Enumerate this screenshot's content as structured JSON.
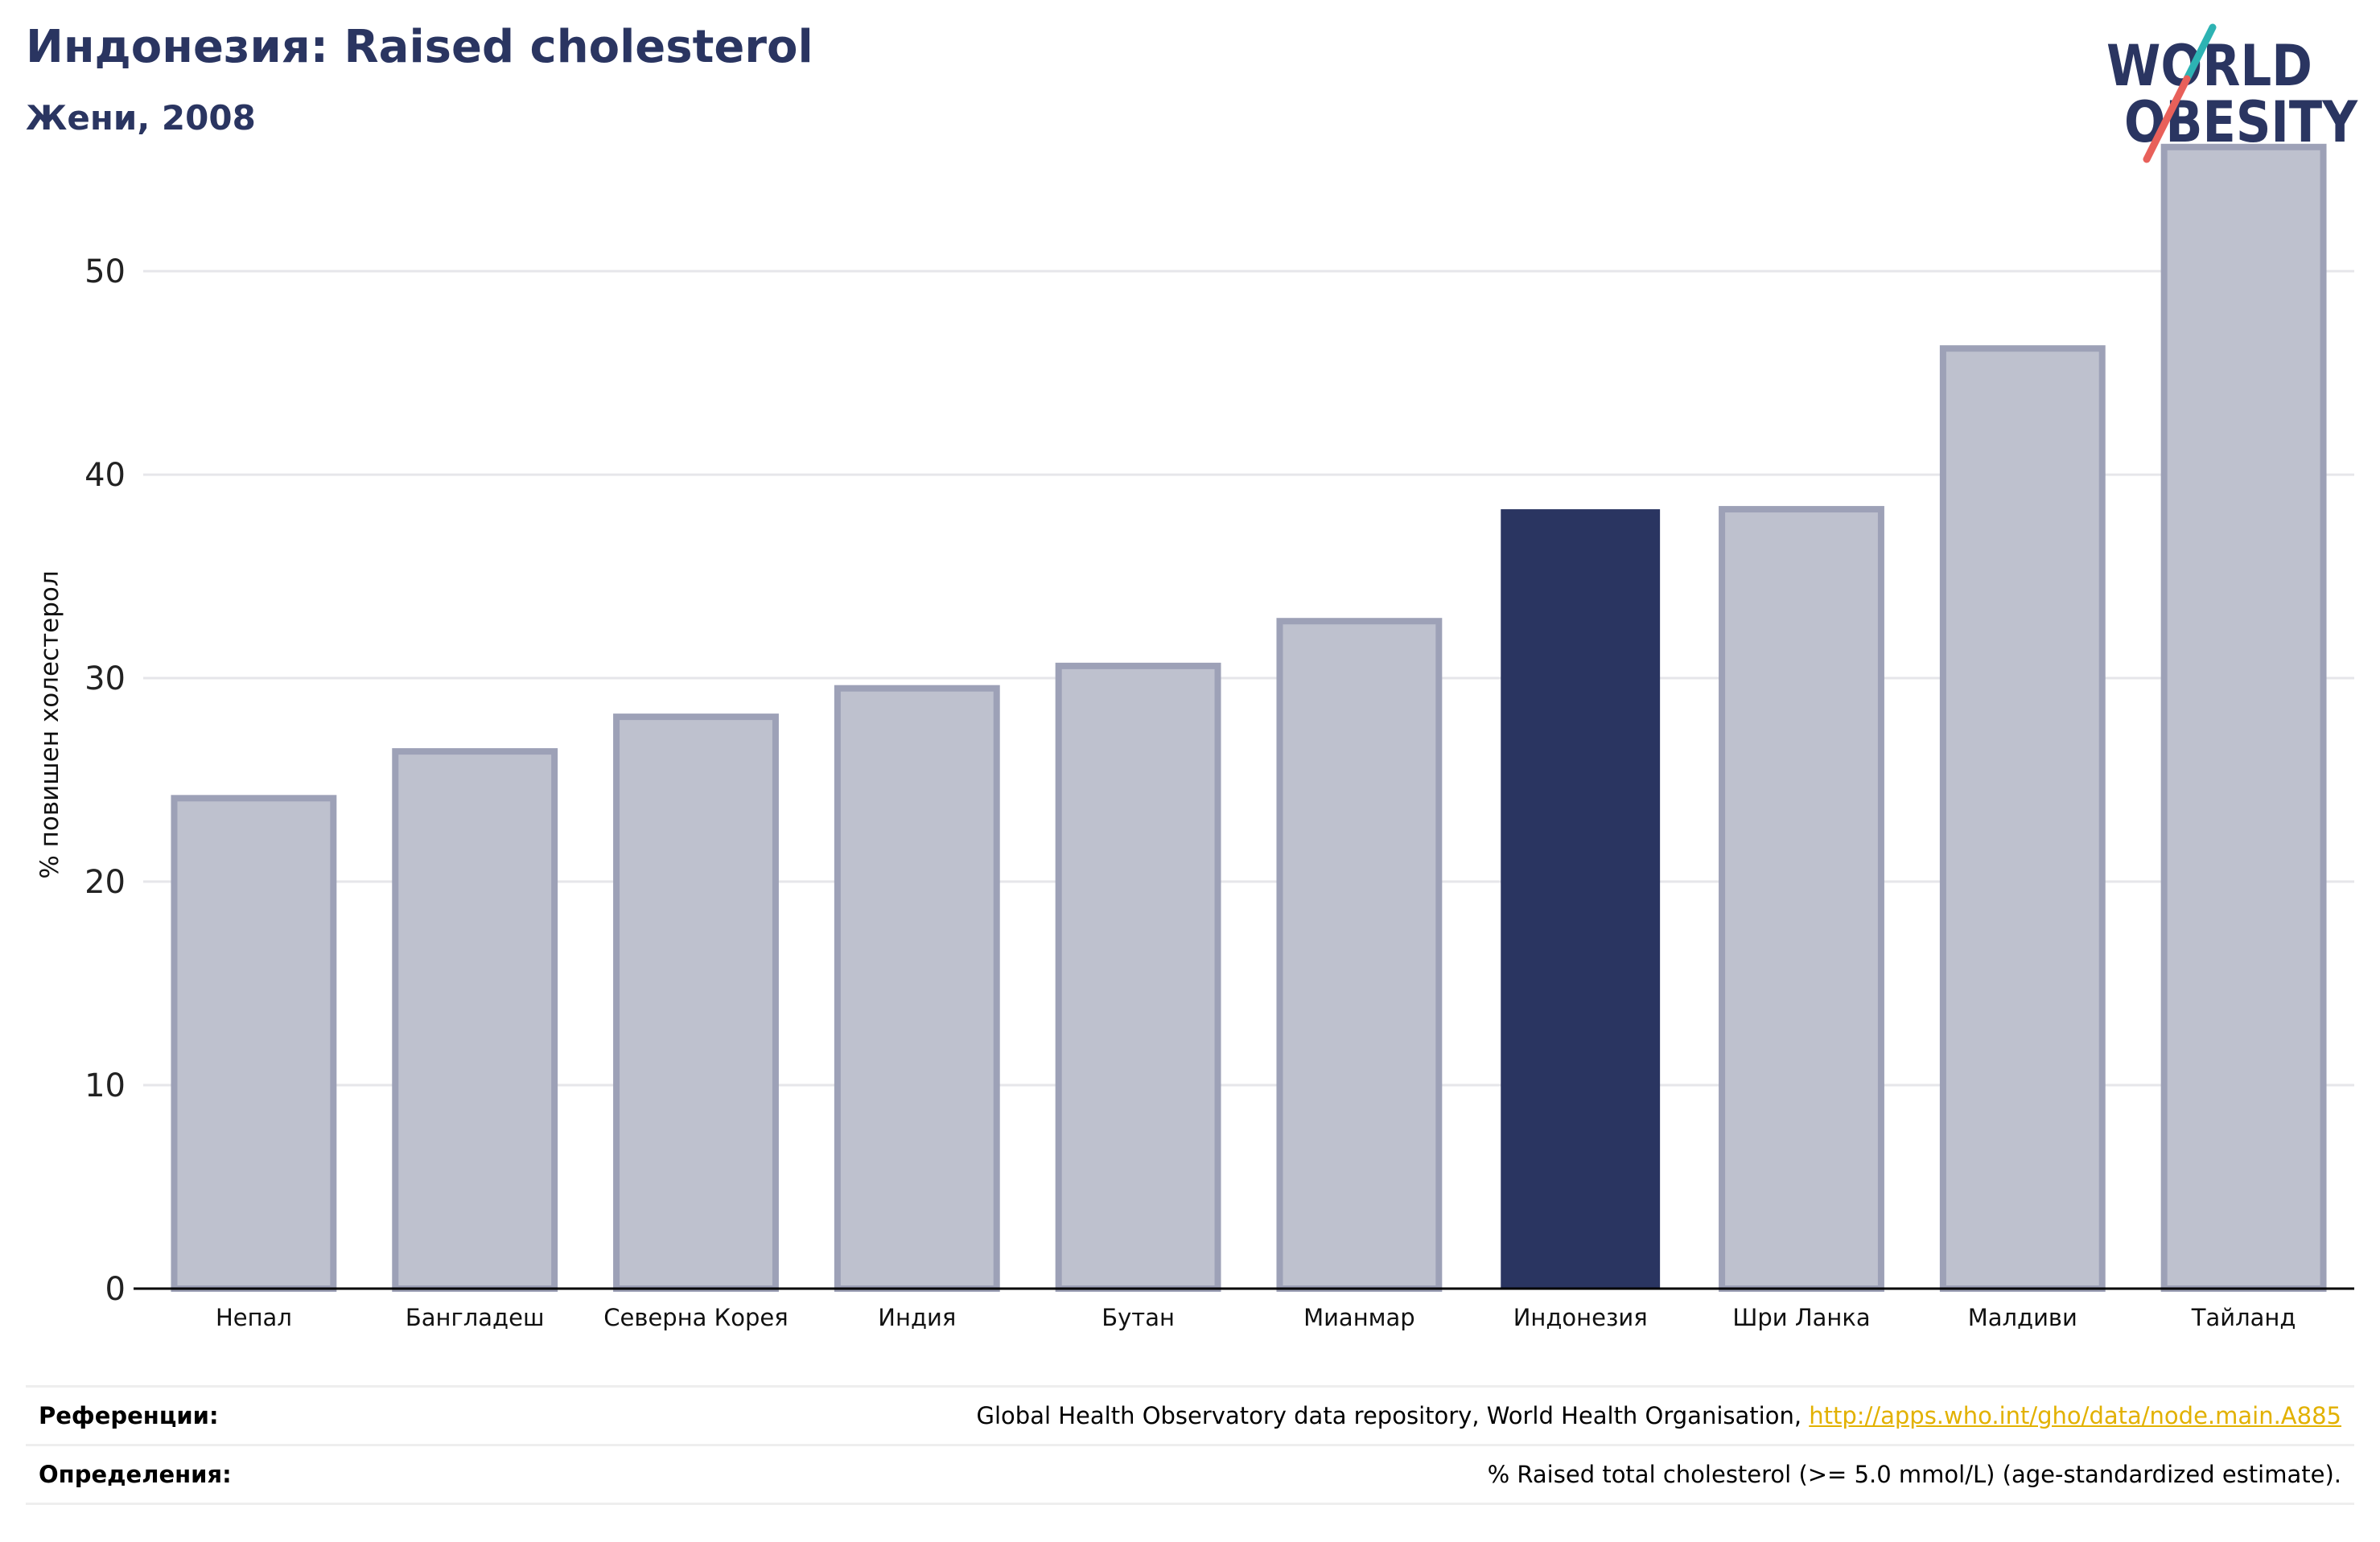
{
  "header": {
    "title": "Индонезия: Raised cholesterol",
    "subtitle": "Жени, 2008"
  },
  "logo": {
    "line1": "WORLD",
    "line2": "OBESITY"
  },
  "chart_data": {
    "type": "bar",
    "title": "Индонезия: Raised cholesterol",
    "subtitle": "Жени, 2008",
    "ylabel": "% повишен холестерол",
    "xlabel": "",
    "ylim": [
      0,
      57
    ],
    "yticks": [
      0,
      10,
      20,
      30,
      40,
      50
    ],
    "grid": true,
    "categories": [
      "Непал",
      "Бангладеш",
      "Северна Корея",
      "Индия",
      "Бутан",
      "Мианмар",
      "Индонезия",
      "Шри Ланка",
      "Малдиви",
      "Тайланд"
    ],
    "values": [
      24.1,
      26.4,
      28.1,
      29.5,
      30.6,
      32.8,
      38.3,
      38.3,
      46.2,
      56.1
    ],
    "highlight": "Индонезия",
    "colors": {
      "bar": "#bec1ce",
      "bar_edge": "#9da1b7",
      "highlight": "#2a3561",
      "grid": "#e6e6ea",
      "axis": "#000000"
    }
  },
  "footer": {
    "references_label": "Референции:",
    "references_text": "Global Health Observatory data repository, World Health Organisation, ",
    "references_link": "http://apps.who.int/gho/data/node.main.A885",
    "definitions_label": "Определения:",
    "definitions_text": "% Raised total cholesterol (>= 5.0 mmol/L) (age-standardized estimate)."
  }
}
